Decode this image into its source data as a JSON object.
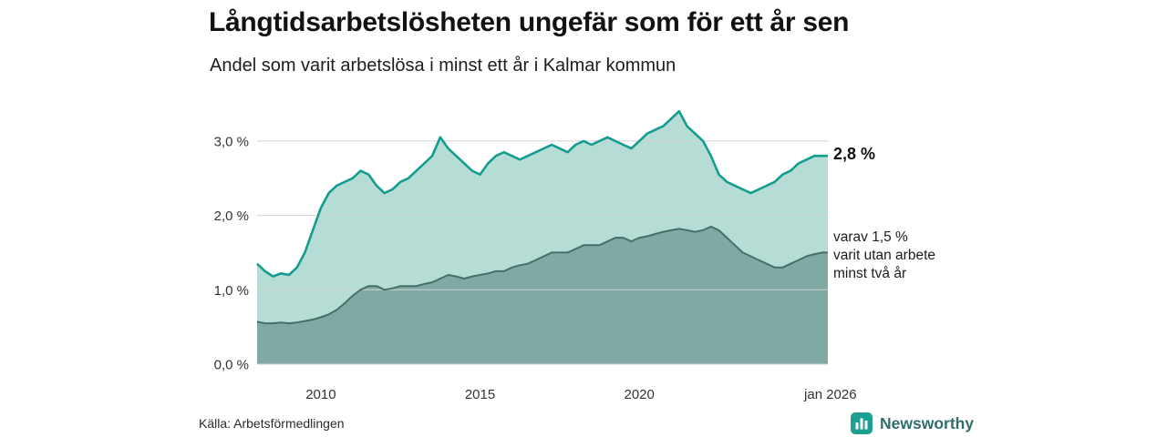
{
  "header": {
    "title": "Långtidsarbetslösheten ungefär som för ett år sen",
    "subtitle": "Andel som varit arbetslösa i minst ett år i Kalmar kommun"
  },
  "annotations": {
    "latest_total": "2,8 %",
    "secondary_lines": [
      "varav 1,5 %",
      "varit utan arbete",
      "minst två år"
    ]
  },
  "footer": {
    "source": "Källa: Arbetsförmedlingen",
    "brand_name": "Newsworthy"
  },
  "colors": {
    "accent_teal": "#149d8e",
    "area_light": "#b5ddd6",
    "area_dark": "#7fa9a2",
    "area_dark_stroke": "#476f69",
    "grid": "#d2d2d2",
    "brand_teal": "#1b9f90",
    "brand_text": "#2f6e69"
  },
  "chart_data": {
    "type": "area",
    "title": "Långtidsarbetslösheten ungefär som för ett år sen",
    "subtitle": "Andel som varit arbetslösa i minst ett år i Kalmar kommun",
    "unit": "%",
    "grid": true,
    "grid_color": "#d2d2d2",
    "xlim": [
      2008,
      2025.92
    ],
    "ylim": [
      0,
      3.5
    ],
    "x_ticks": [
      {
        "value": 2010,
        "label": "2010"
      },
      {
        "value": 2015,
        "label": "2015"
      },
      {
        "value": 2020,
        "label": "2020"
      },
      {
        "value": 2026,
        "label": "jan 2026"
      }
    ],
    "y_ticks": [
      {
        "value": 0,
        "label": "0,0 %"
      },
      {
        "value": 1,
        "label": "1,0 %"
      },
      {
        "value": 2,
        "label": "2,0 %"
      },
      {
        "value": 3,
        "label": "3,0 %"
      }
    ],
    "x": [
      2008,
      2008.25,
      2008.5,
      2008.75,
      2009,
      2009.25,
      2009.5,
      2009.75,
      2010,
      2010.25,
      2010.5,
      2010.75,
      2011,
      2011.25,
      2011.5,
      2011.75,
      2012,
      2012.25,
      2012.5,
      2012.75,
      2013,
      2013.25,
      2013.5,
      2013.75,
      2014,
      2014.25,
      2014.5,
      2014.75,
      2015,
      2015.25,
      2015.5,
      2015.75,
      2016,
      2016.25,
      2016.5,
      2016.75,
      2017,
      2017.25,
      2017.5,
      2017.75,
      2018,
      2018.25,
      2018.5,
      2018.75,
      2019,
      2019.25,
      2019.5,
      2019.75,
      2020,
      2020.25,
      2020.5,
      2020.75,
      2021,
      2021.25,
      2021.5,
      2021.75,
      2022,
      2022.25,
      2022.5,
      2022.75,
      2023,
      2023.25,
      2023.5,
      2023.75,
      2024,
      2024.25,
      2024.5,
      2024.75,
      2025,
      2025.25,
      2025.5,
      2025.75,
      2025.92
    ],
    "series": [
      {
        "id": "total",
        "name": "Andel arbetslösa minst ett år",
        "fill": "#b5ddd6",
        "stroke": "#149d8e",
        "latest_value": 2.8,
        "latest_label": "2,8 %",
        "values": [
          1.35,
          1.25,
          1.18,
          1.22,
          1.2,
          1.3,
          1.5,
          1.8,
          2.1,
          2.3,
          2.4,
          2.45,
          2.5,
          2.6,
          2.55,
          2.4,
          2.3,
          2.35,
          2.45,
          2.5,
          2.6,
          2.7,
          2.8,
          3.05,
          2.9,
          2.8,
          2.7,
          2.6,
          2.55,
          2.7,
          2.8,
          2.85,
          2.8,
          2.75,
          2.8,
          2.85,
          2.9,
          2.95,
          2.9,
          2.85,
          2.95,
          3.0,
          2.95,
          3.0,
          3.05,
          3.0,
          2.95,
          2.9,
          3.0,
          3.1,
          3.15,
          3.2,
          3.3,
          3.4,
          3.2,
          3.1,
          3.0,
          2.8,
          2.55,
          2.45,
          2.4,
          2.35,
          2.3,
          2.35,
          2.4,
          2.45,
          2.55,
          2.6,
          2.7,
          2.75,
          2.8,
          2.8,
          2.8
        ]
      },
      {
        "id": "two-years",
        "name": "Varav utan arbete minst två år",
        "fill": "#7fa9a2",
        "stroke": "#476f69",
        "latest_value": 1.5,
        "latest_label": "1,5 %",
        "values": [
          0.57,
          0.55,
          0.55,
          0.56,
          0.55,
          0.56,
          0.58,
          0.6,
          0.63,
          0.67,
          0.73,
          0.82,
          0.92,
          1.0,
          1.05,
          1.05,
          1.0,
          1.02,
          1.05,
          1.05,
          1.05,
          1.08,
          1.1,
          1.15,
          1.2,
          1.18,
          1.15,
          1.18,
          1.2,
          1.22,
          1.25,
          1.25,
          1.3,
          1.33,
          1.35,
          1.4,
          1.45,
          1.5,
          1.5,
          1.5,
          1.55,
          1.6,
          1.6,
          1.6,
          1.65,
          1.7,
          1.7,
          1.65,
          1.7,
          1.72,
          1.75,
          1.78,
          1.8,
          1.82,
          1.8,
          1.78,
          1.8,
          1.85,
          1.8,
          1.7,
          1.6,
          1.5,
          1.45,
          1.4,
          1.35,
          1.3,
          1.3,
          1.35,
          1.4,
          1.45,
          1.48,
          1.5,
          1.5
        ]
      }
    ]
  }
}
